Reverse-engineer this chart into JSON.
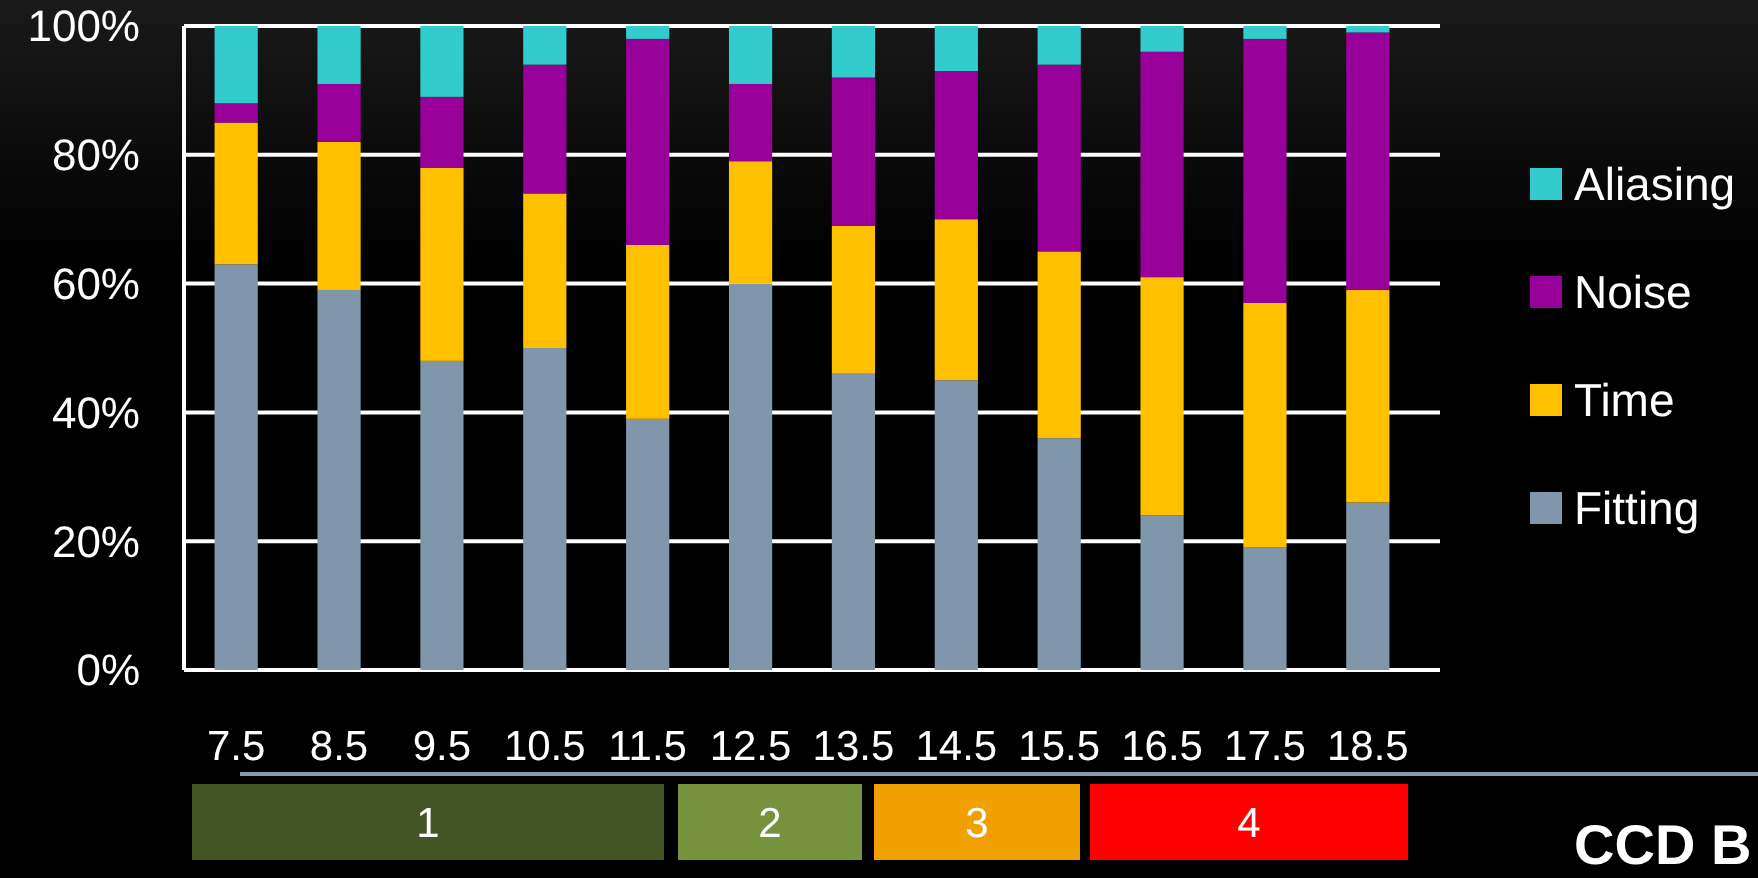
{
  "chart_data": {
    "type": "bar",
    "stacked": true,
    "categories": [
      "7.5",
      "8.5",
      "9.5",
      "10.5",
      "11.5",
      "12.5",
      "13.5",
      "14.5",
      "15.5",
      "16.5",
      "17.5",
      "18.5"
    ],
    "series": [
      {
        "name": "Fitting",
        "color": "#7f96ab",
        "values": [
          63,
          59,
          48,
          50,
          39,
          60,
          46,
          45,
          36,
          24,
          19,
          26
        ]
      },
      {
        "name": "Time",
        "color": "#ffc000",
        "values": [
          22,
          23,
          30,
          24,
          27,
          19,
          23,
          25,
          29,
          37,
          38,
          33
        ]
      },
      {
        "name": "Noise",
        "color": "#990099",
        "values": [
          3,
          9,
          11,
          20,
          32,
          12,
          23,
          23,
          29,
          35,
          41,
          40
        ]
      },
      {
        "name": "Aliasing",
        "color": "#33cccc",
        "values": [
          12,
          9,
          11,
          6,
          2,
          9,
          8,
          7,
          6,
          4,
          2,
          1
        ]
      }
    ],
    "ylim": [
      0,
      100
    ],
    "yticks": [
      {
        "value": 0,
        "label": "0%"
      },
      {
        "value": 20,
        "label": "20%"
      },
      {
        "value": 40,
        "label": "40%"
      },
      {
        "value": 60,
        "label": "60%"
      },
      {
        "value": 80,
        "label": "80%"
      },
      {
        "value": 100,
        "label": "100%"
      }
    ],
    "grid": "y",
    "legend": "right",
    "annotations": [
      "1",
      "2",
      "3",
      "4",
      "CCD B"
    ]
  }
}
